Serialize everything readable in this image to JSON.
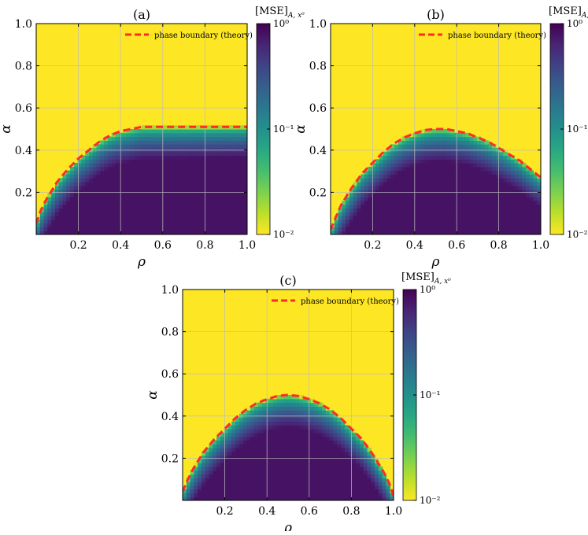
{
  "chart_data": [
    {
      "type": "heatmap",
      "title": "(a)",
      "xlabel": "ρ",
      "ylabel": "α",
      "xlim": [
        0,
        1
      ],
      "ylim": [
        0,
        1
      ],
      "x_ticks": [
        "0.2",
        "0.4",
        "0.6",
        "0.8",
        "1.0"
      ],
      "y_ticks": [
        "0.2",
        "0.4",
        "0.6",
        "0.8",
        "1.0"
      ],
      "grid": true,
      "colorscale": "viridis_r",
      "color_log_range": [
        -2,
        0
      ],
      "colorbar": {
        "title": "[MSE]",
        "title_sub": "A, x⁰",
        "ticks": [
          "10⁰",
          "10⁻¹",
          "10⁻²"
        ]
      },
      "legend": {
        "entries": [
          "phase boundary (theory)"
        ],
        "placement": "top-right",
        "color": "#ff2a2a"
      },
      "boundary": {
        "rho": [
          0,
          0.02,
          0.05,
          0.1,
          0.15,
          0.2,
          0.25,
          0.3,
          0.35,
          0.4,
          0.45,
          0.5,
          0.6,
          0.7,
          0.8,
          0.9,
          1.0
        ],
        "alpha": [
          0.05,
          0.11,
          0.17,
          0.25,
          0.31,
          0.36,
          0.4,
          0.44,
          0.47,
          0.49,
          0.5,
          0.51,
          0.51,
          0.51,
          0.51,
          0.51,
          0.51
        ]
      }
    },
    {
      "type": "heatmap",
      "title": "(b)",
      "xlabel": "ρ",
      "ylabel": "α",
      "xlim": [
        0,
        1
      ],
      "ylim": [
        0,
        1
      ],
      "x_ticks": [
        "0.2",
        "0.4",
        "0.6",
        "0.8",
        "1.0"
      ],
      "y_ticks": [
        "0.2",
        "0.4",
        "0.6",
        "0.8",
        "1.0"
      ],
      "grid": true,
      "colorscale": "viridis_r",
      "color_log_range": [
        -2,
        0
      ],
      "colorbar": {
        "title": "[MSE]",
        "title_sub": "A, x⁰",
        "ticks": [
          "10⁰",
          "10⁻¹",
          "10⁻²"
        ]
      },
      "legend": {
        "entries": [
          "phase boundary (theory)"
        ],
        "placement": "top-right",
        "color": "#ff2a2a"
      },
      "boundary": {
        "rho": [
          0,
          0.02,
          0.05,
          0.1,
          0.15,
          0.2,
          0.25,
          0.3,
          0.35,
          0.4,
          0.45,
          0.5,
          0.55,
          0.6,
          0.65,
          0.7,
          0.75,
          0.8,
          0.85,
          0.9,
          0.95,
          1.0
        ],
        "alpha": [
          0.02,
          0.07,
          0.14,
          0.22,
          0.29,
          0.34,
          0.39,
          0.43,
          0.46,
          0.48,
          0.495,
          0.5,
          0.5,
          0.49,
          0.48,
          0.46,
          0.44,
          0.41,
          0.38,
          0.35,
          0.31,
          0.27
        ]
      }
    },
    {
      "type": "heatmap",
      "title": "(c)",
      "xlabel": "ρ",
      "ylabel": "α",
      "xlim": [
        0,
        1
      ],
      "ylim": [
        0,
        1
      ],
      "x_ticks": [
        "0.2",
        "0.4",
        "0.6",
        "0.8",
        "1.0"
      ],
      "y_ticks": [
        "0.2",
        "0.4",
        "0.6",
        "0.8",
        "1.0"
      ],
      "grid": true,
      "colorscale": "viridis_r",
      "color_log_range": [
        -2,
        0
      ],
      "colorbar": {
        "title": "[MSE]",
        "title_sub": "A, x⁰",
        "ticks": [
          "10⁰",
          "10⁻¹",
          "10⁻²"
        ]
      },
      "legend": {
        "entries": [
          "phase boundary (theory)"
        ],
        "placement": "top-right",
        "color": "#ff2a2a"
      },
      "boundary": {
        "rho": [
          0,
          0.02,
          0.05,
          0.1,
          0.15,
          0.2,
          0.25,
          0.3,
          0.35,
          0.4,
          0.45,
          0.5,
          0.55,
          0.6,
          0.65,
          0.7,
          0.75,
          0.8,
          0.85,
          0.9,
          0.95,
          0.98,
          1.0
        ],
        "alpha": [
          0.04,
          0.09,
          0.15,
          0.23,
          0.29,
          0.34,
          0.39,
          0.43,
          0.46,
          0.48,
          0.495,
          0.5,
          0.495,
          0.48,
          0.46,
          0.43,
          0.39,
          0.34,
          0.29,
          0.22,
          0.14,
          0.08,
          0.02
        ]
      }
    }
  ]
}
